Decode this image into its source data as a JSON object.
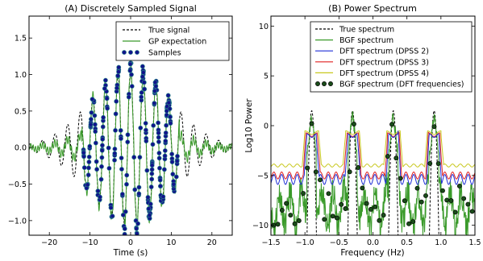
{
  "chart_data": [
    {
      "type": "line",
      "title": "(A) Discretely Sampled Signal",
      "xlabel": "Time (s)",
      "ylabel": "",
      "xlim": [
        -25,
        25
      ],
      "ylim": [
        -1.2,
        1.8
      ],
      "xticks": [
        -20,
        -10,
        0,
        10,
        20
      ],
      "xtick_labels": [
        "−20",
        "−10",
        "0",
        "10",
        "20"
      ],
      "yticks": [
        -1.0,
        -0.5,
        0.0,
        0.5,
        1.0,
        1.5
      ],
      "ytick_labels": [
        "−1.0",
        "−0.5",
        "0.0",
        "0.5",
        "1.0",
        "1.5"
      ],
      "legend_position": "top-right",
      "series": [
        {
          "name": "True signal",
          "kind": "line",
          "color": "#000000",
          "dash": "dashed",
          "model": {
            "envelope_sigma_s": 10,
            "period_s": 3.1,
            "x_range": [
              -25,
              25
            ]
          }
        },
        {
          "name": "GP expectation",
          "kind": "line",
          "color": "#3a9a2a",
          "model": {
            "envelope_sigma_s": 10,
            "period_s": 3.1,
            "x_range": [
              -25,
              25
            ]
          }
        },
        {
          "name": "Samples",
          "kind": "scatter",
          "color": "#10148a",
          "edge_color": "#2e8b8b",
          "model": {
            "x_range": [
              -11.6,
              11.6
            ],
            "count": 240,
            "amplitude": 1.15
          }
        }
      ]
    },
    {
      "type": "line",
      "title": "(B) Power Spectrum",
      "xlabel": "Frequency (Hz)",
      "ylabel": "Log10 Power",
      "xlim": [
        -1.5,
        1.5
      ],
      "ylim": [
        -11,
        11
      ],
      "xticks": [
        -1.5,
        -1.0,
        -0.5,
        0.0,
        0.5,
        1.0,
        1.5
      ],
      "xtick_labels": [
        "−1.5",
        "−1.0",
        "−0.5",
        "0.0",
        "0.5",
        "1.0",
        "1.5"
      ],
      "yticks": [
        -10,
        -5,
        0,
        5,
        10
      ],
      "ytick_labels": [
        "−10",
        "−5",
        "0",
        "5",
        "10"
      ],
      "legend_position": "top-right",
      "peak_frequencies": [
        -0.9,
        -0.3,
        0.3,
        0.9
      ],
      "series": [
        {
          "name": "True spectrum",
          "kind": "line",
          "color": "#000000",
          "dash": "dashed",
          "peak_value": 1.5
        },
        {
          "name": "BGF spectrum",
          "kind": "line",
          "color": "#3a9a2a",
          "peak_value": 1.2,
          "floor": -8.5
        },
        {
          "name": "DFT spectrum (DPSS 2)",
          "kind": "line",
          "color": "#1f2fd6",
          "plateau": -1.0,
          "floor": -5.4
        },
        {
          "name": "DFT spectrum (DPSS 3)",
          "kind": "line",
          "color": "#e02020",
          "plateau": -0.9,
          "floor": -5.0
        },
        {
          "name": "DFT spectrum (DPSS 4)",
          "kind": "line",
          "color": "#c8c81e",
          "plateau": -0.7,
          "floor": -4.0
        },
        {
          "name": "BGF spectrum (DFT frequencies)",
          "kind": "scatter",
          "color": "#1a4d1a",
          "edge_color": "#000000"
        }
      ]
    }
  ]
}
